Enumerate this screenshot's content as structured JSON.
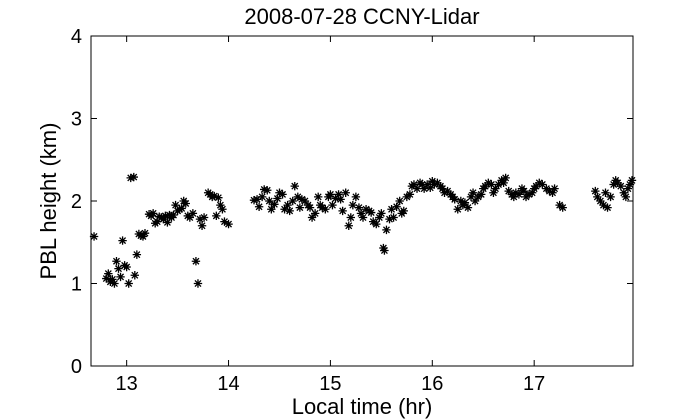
{
  "chart_data": {
    "type": "scatter",
    "title": "2008-07-28 CCNY-Lidar",
    "xlabel": "Local time (hr)",
    "ylabel": "PBL height (km)",
    "xlim": [
      12.65,
      17.97
    ],
    "ylim": [
      0,
      4
    ],
    "xticks": [
      13,
      14,
      15,
      16,
      17
    ],
    "xtick_labels": [
      "13",
      "14",
      "15",
      "16",
      "17"
    ],
    "yticks": [
      0,
      1,
      2,
      3,
      4
    ],
    "ytick_labels": [
      "0",
      "1",
      "2",
      "3",
      "4"
    ],
    "grid": false,
    "legend": "none",
    "marker": "asterisk",
    "marker_color": "#000000",
    "points": [
      [
        12.68,
        1.57
      ],
      [
        12.8,
        1.06
      ],
      [
        12.82,
        1.12
      ],
      [
        12.84,
        1.02
      ],
      [
        12.86,
        1.05
      ],
      [
        12.88,
        1.0
      ],
      [
        12.9,
        1.27
      ],
      [
        12.92,
        1.18
      ],
      [
        12.94,
        1.08
      ],
      [
        12.96,
        1.52
      ],
      [
        12.98,
        1.22
      ],
      [
        13.0,
        1.2
      ],
      [
        13.02,
        1.0
      ],
      [
        13.04,
        2.28
      ],
      [
        13.07,
        2.29
      ],
      [
        13.08,
        1.1
      ],
      [
        13.1,
        1.35
      ],
      [
        13.12,
        1.6
      ],
      [
        13.14,
        1.58
      ],
      [
        13.16,
        1.57
      ],
      [
        13.18,
        1.61
      ],
      [
        13.22,
        1.84
      ],
      [
        13.24,
        1.82
      ],
      [
        13.26,
        1.85
      ],
      [
        13.28,
        1.73
      ],
      [
        13.3,
        1.75
      ],
      [
        13.32,
        1.81
      ],
      [
        13.34,
        1.8
      ],
      [
        13.36,
        1.78
      ],
      [
        13.38,
        1.82
      ],
      [
        13.4,
        1.74
      ],
      [
        13.42,
        1.83
      ],
      [
        13.44,
        1.8
      ],
      [
        13.46,
        1.83
      ],
      [
        13.48,
        1.95
      ],
      [
        13.5,
        1.88
      ],
      [
        13.52,
        1.9
      ],
      [
        13.54,
        1.91
      ],
      [
        13.56,
        2.0
      ],
      [
        13.58,
        1.97
      ],
      [
        13.6,
        1.82
      ],
      [
        13.62,
        1.8
      ],
      [
        13.65,
        1.85
      ],
      [
        13.68,
        1.27
      ],
      [
        13.7,
        1.0
      ],
      [
        13.72,
        1.78
      ],
      [
        13.74,
        1.7
      ],
      [
        13.76,
        1.8
      ],
      [
        13.8,
        2.1
      ],
      [
        13.82,
        2.08
      ],
      [
        13.84,
        2.05
      ],
      [
        13.86,
        2.06
      ],
      [
        13.88,
        1.82
      ],
      [
        13.9,
        2.04
      ],
      [
        13.92,
        1.95
      ],
      [
        13.94,
        1.9
      ],
      [
        13.96,
        1.75
      ],
      [
        14.0,
        1.72
      ],
      [
        14.25,
        2.01
      ],
      [
        14.28,
        2.02
      ],
      [
        14.3,
        1.93
      ],
      [
        14.33,
        2.05
      ],
      [
        14.35,
        2.14
      ],
      [
        14.38,
        2.13
      ],
      [
        14.4,
        2.0
      ],
      [
        14.42,
        1.9
      ],
      [
        14.45,
        1.96
      ],
      [
        14.48,
        2.03
      ],
      [
        14.5,
        2.1
      ],
      [
        14.53,
        2.08
      ],
      [
        14.55,
        1.9
      ],
      [
        14.58,
        1.95
      ],
      [
        14.6,
        1.88
      ],
      [
        14.63,
        2.0
      ],
      [
        14.65,
        2.18
      ],
      [
        14.68,
        2.05
      ],
      [
        14.7,
        1.92
      ],
      [
        14.72,
        2.02
      ],
      [
        14.75,
        2.0
      ],
      [
        14.78,
        1.95
      ],
      [
        14.8,
        1.92
      ],
      [
        14.82,
        1.8
      ],
      [
        14.85,
        1.85
      ],
      [
        14.88,
        2.05
      ],
      [
        14.9,
        1.95
      ],
      [
        14.92,
        1.92
      ],
      [
        14.95,
        1.9
      ],
      [
        14.98,
        2.05
      ],
      [
        15.0,
        2.08
      ],
      [
        15.02,
        1.95
      ],
      [
        15.05,
        2.03
      ],
      [
        15.08,
        2.08
      ],
      [
        15.1,
        2.02
      ],
      [
        15.12,
        1.88
      ],
      [
        15.15,
        2.1
      ],
      [
        15.18,
        1.7
      ],
      [
        15.2,
        1.8
      ],
      [
        15.22,
        1.95
      ],
      [
        15.25,
        2.05
      ],
      [
        15.28,
        1.92
      ],
      [
        15.3,
        1.85
      ],
      [
        15.32,
        1.8
      ],
      [
        15.35,
        1.9
      ],
      [
        15.38,
        1.88
      ],
      [
        15.4,
        1.86
      ],
      [
        15.42,
        1.75
      ],
      [
        15.45,
        1.72
      ],
      [
        15.48,
        1.8
      ],
      [
        15.5,
        1.85
      ],
      [
        15.52,
        1.43
      ],
      [
        15.53,
        1.4
      ],
      [
        15.55,
        1.65
      ],
      [
        15.58,
        1.78
      ],
      [
        15.6,
        1.9
      ],
      [
        15.62,
        1.8
      ],
      [
        15.65,
        1.93
      ],
      [
        15.68,
        2.0
      ],
      [
        15.7,
        1.85
      ],
      [
        15.72,
        1.88
      ],
      [
        15.75,
        2.05
      ],
      [
        15.78,
        2.08
      ],
      [
        15.8,
        2.18
      ],
      [
        15.82,
        2.2
      ],
      [
        15.85,
        2.15
      ],
      [
        15.88,
        2.22
      ],
      [
        15.9,
        2.2
      ],
      [
        15.92,
        2.15
      ],
      [
        15.95,
        2.2
      ],
      [
        15.98,
        2.16
      ],
      [
        16.0,
        2.24
      ],
      [
        16.02,
        2.2
      ],
      [
        16.05,
        2.22
      ],
      [
        16.08,
        2.18
      ],
      [
        16.1,
        2.15
      ],
      [
        16.12,
        2.1
      ],
      [
        16.15,
        2.12
      ],
      [
        16.18,
        2.08
      ],
      [
        16.2,
        2.05
      ],
      [
        16.22,
        2.02
      ],
      [
        16.25,
        1.9
      ],
      [
        16.28,
        2.0
      ],
      [
        16.3,
        1.95
      ],
      [
        16.32,
        1.98
      ],
      [
        16.35,
        1.92
      ],
      [
        16.38,
        2.05
      ],
      [
        16.4,
        2.1
      ],
      [
        16.42,
        2.0
      ],
      [
        16.45,
        2.05
      ],
      [
        16.48,
        2.08
      ],
      [
        16.5,
        2.15
      ],
      [
        16.52,
        2.18
      ],
      [
        16.55,
        2.22
      ],
      [
        16.58,
        2.2
      ],
      [
        16.6,
        2.1
      ],
      [
        16.62,
        2.15
      ],
      [
        16.65,
        2.2
      ],
      [
        16.68,
        2.25
      ],
      [
        16.7,
        2.22
      ],
      [
        16.72,
        2.28
      ],
      [
        16.75,
        2.12
      ],
      [
        16.78,
        2.08
      ],
      [
        16.8,
        2.05
      ],
      [
        16.82,
        2.1
      ],
      [
        16.85,
        2.08
      ],
      [
        16.88,
        2.15
      ],
      [
        16.9,
        2.12
      ],
      [
        16.92,
        2.05
      ],
      [
        16.95,
        2.08
      ],
      [
        16.98,
        2.1
      ],
      [
        17.0,
        2.15
      ],
      [
        17.02,
        2.18
      ],
      [
        17.05,
        2.22
      ],
      [
        17.08,
        2.2
      ],
      [
        17.12,
        2.15
      ],
      [
        17.15,
        2.12
      ],
      [
        17.18,
        2.1
      ],
      [
        17.2,
        2.15
      ],
      [
        17.25,
        1.95
      ],
      [
        17.28,
        1.92
      ],
      [
        17.6,
        2.12
      ],
      [
        17.62,
        2.05
      ],
      [
        17.65,
        2.0
      ],
      [
        17.68,
        1.95
      ],
      [
        17.7,
        2.1
      ],
      [
        17.72,
        1.92
      ],
      [
        17.75,
        2.05
      ],
      [
        17.78,
        2.2
      ],
      [
        17.8,
        2.25
      ],
      [
        17.82,
        2.22
      ],
      [
        17.85,
        2.18
      ],
      [
        17.88,
        2.1
      ],
      [
        17.9,
        2.05
      ],
      [
        17.92,
        2.15
      ],
      [
        17.94,
        2.2
      ],
      [
        17.96,
        2.25
      ]
    ]
  }
}
